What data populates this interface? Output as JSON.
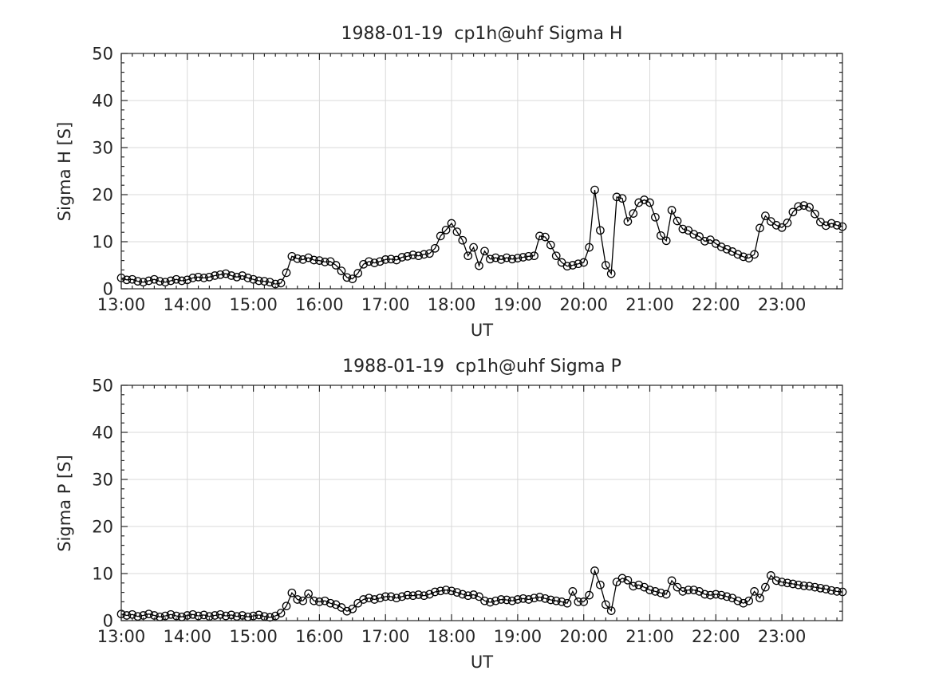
{
  "colors": {
    "line": "#000000",
    "grid": "#d9d9d9",
    "axis": "#262626",
    "text": "#262626",
    "background": "#ffffff"
  },
  "chart_data": [
    {
      "type": "line",
      "title": "1988-01-19  cp1h@uhf Sigma H",
      "xlabel": "UT",
      "ylabel": "Sigma H [S]",
      "marker": "open-circle",
      "grid": true,
      "legend": "none",
      "ylim": [
        0,
        50
      ],
      "x_axis_range": [
        "13:00",
        "23:55"
      ],
      "x_tick_labels": [
        "13:00",
        "14:00",
        "15:00",
        "16:00",
        "17:00",
        "18:00",
        "19:00",
        "20:00",
        "21:00",
        "22:00",
        "23:00"
      ],
      "y_tick_labels": [
        0,
        10,
        20,
        30,
        40,
        50
      ],
      "x_minor_step_minutes": 10,
      "y_minor_step": 2,
      "x": [
        "13:00",
        "13:05",
        "13:10",
        "13:15",
        "13:20",
        "13:25",
        "13:30",
        "13:35",
        "13:40",
        "13:45",
        "13:50",
        "13:55",
        "14:00",
        "14:05",
        "14:10",
        "14:15",
        "14:20",
        "14:25",
        "14:30",
        "14:35",
        "14:40",
        "14:45",
        "14:50",
        "14:55",
        "15:00",
        "15:05",
        "15:10",
        "15:15",
        "15:20",
        "15:25",
        "15:30",
        "15:35",
        "15:40",
        "15:45",
        "15:50",
        "15:55",
        "16:00",
        "16:05",
        "16:10",
        "16:15",
        "16:20",
        "16:25",
        "16:30",
        "16:35",
        "16:40",
        "16:45",
        "16:50",
        "16:55",
        "17:00",
        "17:05",
        "17:10",
        "17:15",
        "17:20",
        "17:25",
        "17:30",
        "17:35",
        "17:40",
        "17:45",
        "17:50",
        "17:55",
        "18:00",
        "18:05",
        "18:10",
        "18:15",
        "18:20",
        "18:25",
        "18:30",
        "18:35",
        "18:40",
        "18:45",
        "18:50",
        "18:55",
        "19:00",
        "19:05",
        "19:10",
        "19:15",
        "19:20",
        "19:25",
        "19:30",
        "19:35",
        "19:40",
        "19:45",
        "19:50",
        "19:55",
        "20:00",
        "20:05",
        "20:10",
        "20:15",
        "20:20",
        "20:25",
        "20:30",
        "20:35",
        "20:40",
        "20:45",
        "20:50",
        "20:55",
        "21:00",
        "21:05",
        "21:10",
        "21:15",
        "21:20",
        "21:25",
        "21:30",
        "21:35",
        "21:40",
        "21:45",
        "21:50",
        "21:55",
        "22:00",
        "22:05",
        "22:10",
        "22:15",
        "22:20",
        "22:25",
        "22:30",
        "22:35",
        "22:40",
        "22:45",
        "22:50",
        "22:55",
        "23:00",
        "23:05",
        "23:10",
        "23:15",
        "23:20",
        "23:25",
        "23:30",
        "23:35",
        "23:40",
        "23:45",
        "23:50",
        "23:55"
      ],
      "values": [
        2.3,
        1.9,
        2.0,
        1.6,
        1.4,
        1.7,
        2.0,
        1.6,
        1.4,
        1.7,
        2.0,
        1.7,
        1.9,
        2.3,
        2.5,
        2.3,
        2.5,
        2.8,
        3.0,
        3.2,
        2.8,
        2.5,
        2.8,
        2.3,
        2.0,
        1.7,
        1.6,
        1.4,
        1.0,
        1.2,
        3.4,
        6.9,
        6.4,
        6.2,
        6.6,
        6.1,
        6.0,
        5.7,
        5.8,
        5.0,
        3.8,
        2.4,
        2.1,
        3.3,
        5.2,
        5.8,
        5.5,
        5.8,
        6.2,
        6.3,
        6.1,
        6.7,
        6.9,
        7.2,
        7.0,
        7.3,
        7.5,
        8.6,
        11.2,
        12.5,
        13.9,
        12.1,
        10.3,
        7.0,
        8.8,
        4.9,
        8.0,
        6.3,
        6.6,
        6.2,
        6.6,
        6.3,
        6.5,
        6.7,
        6.9,
        7.0,
        11.2,
        11.0,
        9.3,
        7.0,
        5.6,
        4.8,
        5.0,
        5.3,
        5.6,
        8.8,
        21.0,
        12.4,
        5.0,
        3.2,
        19.5,
        19.2,
        14.3,
        16.0,
        18.3,
        18.9,
        18.3,
        15.2,
        11.3,
        10.2,
        16.7,
        14.4,
        12.7,
        12.4,
        11.6,
        11.1,
        10.1,
        10.4,
        9.6,
        8.9,
        8.4,
        7.9,
        7.3,
        6.8,
        6.5,
        7.3,
        12.9,
        15.5,
        14.3,
        13.5,
        13.0,
        14.0,
        16.3,
        17.5,
        17.7,
        17.3,
        15.9,
        14.2,
        13.4,
        13.9,
        13.5,
        13.2
      ]
    },
    {
      "type": "line",
      "title": "1988-01-19  cp1h@uhf Sigma P",
      "xlabel": "UT",
      "ylabel": "Sigma P [S]",
      "marker": "open-circle",
      "grid": true,
      "legend": "none",
      "ylim": [
        0,
        50
      ],
      "x_axis_range": [
        "13:00",
        "23:55"
      ],
      "x_tick_labels": [
        "13:00",
        "14:00",
        "15:00",
        "16:00",
        "17:00",
        "18:00",
        "19:00",
        "20:00",
        "21:00",
        "22:00",
        "23:00"
      ],
      "y_tick_labels": [
        0,
        10,
        20,
        30,
        40,
        50
      ],
      "x_minor_step_minutes": 10,
      "y_minor_step": 2,
      "x": [
        "13:00",
        "13:05",
        "13:10",
        "13:15",
        "13:20",
        "13:25",
        "13:30",
        "13:35",
        "13:40",
        "13:45",
        "13:50",
        "13:55",
        "14:00",
        "14:05",
        "14:10",
        "14:15",
        "14:20",
        "14:25",
        "14:30",
        "14:35",
        "14:40",
        "14:45",
        "14:50",
        "14:55",
        "15:00",
        "15:05",
        "15:10",
        "15:15",
        "15:20",
        "15:25",
        "15:30",
        "15:35",
        "15:40",
        "15:45",
        "15:50",
        "15:55",
        "16:00",
        "16:05",
        "16:10",
        "16:15",
        "16:20",
        "16:25",
        "16:30",
        "16:35",
        "16:40",
        "16:45",
        "16:50",
        "16:55",
        "17:00",
        "17:05",
        "17:10",
        "17:15",
        "17:20",
        "17:25",
        "17:30",
        "17:35",
        "17:40",
        "17:45",
        "17:50",
        "17:55",
        "18:00",
        "18:05",
        "18:10",
        "18:15",
        "18:20",
        "18:25",
        "18:30",
        "18:35",
        "18:40",
        "18:45",
        "18:50",
        "18:55",
        "19:00",
        "19:05",
        "19:10",
        "19:15",
        "19:20",
        "19:25",
        "19:30",
        "19:35",
        "19:40",
        "19:45",
        "19:50",
        "19:55",
        "20:00",
        "20:05",
        "20:10",
        "20:15",
        "20:20",
        "20:25",
        "20:30",
        "20:35",
        "20:40",
        "20:45",
        "20:50",
        "20:55",
        "21:00",
        "21:05",
        "21:10",
        "21:15",
        "21:20",
        "21:25",
        "21:30",
        "21:35",
        "21:40",
        "21:45",
        "21:50",
        "21:55",
        "22:00",
        "22:05",
        "22:10",
        "22:15",
        "22:20",
        "22:25",
        "22:30",
        "22:35",
        "22:40",
        "22:45",
        "22:50",
        "22:55",
        "23:00",
        "23:05",
        "23:10",
        "23:15",
        "23:20",
        "23:25",
        "23:30",
        "23:35",
        "23:40",
        "23:45",
        "23:50",
        "23:55"
      ],
      "values": [
        1.4,
        1.1,
        1.3,
        0.9,
        1.1,
        1.4,
        1.1,
        0.8,
        1.0,
        1.3,
        1.0,
        0.8,
        1.1,
        1.3,
        1.0,
        1.2,
        0.9,
        1.1,
        1.3,
        1.0,
        1.2,
        0.9,
        1.1,
        0.8,
        1.0,
        1.2,
        0.9,
        0.7,
        1.0,
        1.6,
        3.1,
        5.9,
        4.5,
        4.2,
        5.7,
        4.2,
        4.0,
        4.2,
        3.7,
        3.4,
        2.8,
        2.0,
        2.5,
        3.7,
        4.5,
        4.8,
        4.5,
        4.8,
        5.1,
        5.1,
        4.8,
        5.1,
        5.4,
        5.3,
        5.5,
        5.3,
        5.6,
        6.1,
        6.3,
        6.5,
        6.3,
        6.0,
        5.6,
        5.3,
        5.5,
        5.1,
        4.2,
        3.9,
        4.2,
        4.5,
        4.4,
        4.2,
        4.5,
        4.7,
        4.5,
        4.8,
        5.0,
        4.7,
        4.4,
        4.2,
        4.0,
        3.7,
        6.2,
        4.0,
        4.0,
        5.4,
        10.6,
        7.6,
        3.4,
        2.1,
        8.2,
        9.0,
        8.6,
        7.3,
        7.6,
        7.1,
        6.5,
        6.2,
        5.9,
        5.6,
        8.5,
        7.1,
        6.2,
        6.5,
        6.5,
        6.2,
        5.6,
        5.4,
        5.6,
        5.4,
        5.1,
        4.8,
        4.2,
        3.7,
        4.2,
        6.2,
        4.8,
        7.1,
        9.6,
        8.5,
        8.2,
        8.0,
        7.8,
        7.6,
        7.4,
        7.3,
        7.1,
        6.9,
        6.7,
        6.4,
        6.2,
        6.1
      ]
    }
  ]
}
